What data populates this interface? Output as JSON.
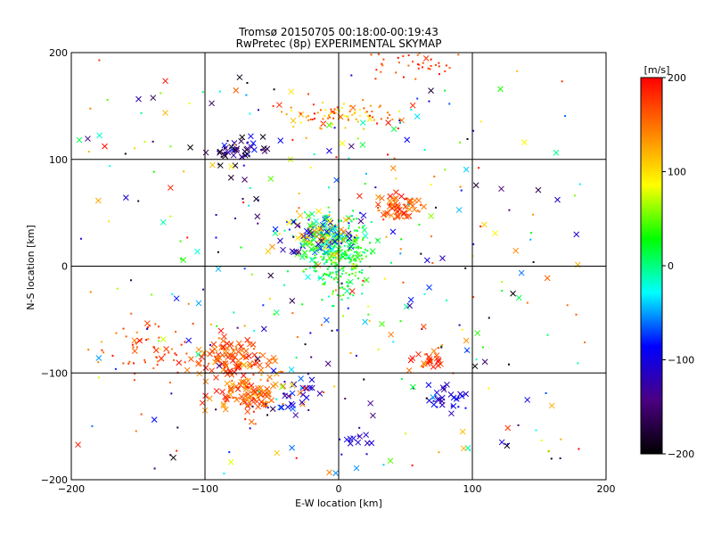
{
  "chart_data": {
    "type": "scatter",
    "title": "Tromsø 20150705 00:18:00-00:19:43",
    "subtitle": "RwPretec (8p) EXPERIMENTAL SKYMAP",
    "xlabel": "E-W location [km]",
    "ylabel": "N-S location [km]",
    "xlim": [
      -200,
      200
    ],
    "ylim": [
      -200,
      200
    ],
    "xticks": [
      -200,
      -100,
      0,
      100,
      200
    ],
    "yticks": [
      -200,
      -100,
      0,
      100,
      200
    ],
    "grid": true,
    "colorbar": {
      "label": "[m/s]",
      "min": -200,
      "max": 200,
      "ticks": [
        200,
        100,
        0,
        -100,
        -200
      ],
      "colorscale": [
        "#000000",
        "#4b0082",
        "#0000ff",
        "#00ffff",
        "#00ff00",
        "#ffff00",
        "#ff8000",
        "#ff0000"
      ]
    },
    "clusters": [
      {
        "name": "center-green",
        "cx": 0,
        "cy": 10,
        "sx": 12,
        "sy": 18,
        "n": 320,
        "v": [
          -20,
          60
        ],
        "marker": "dot"
      },
      {
        "name": "center-mixed",
        "cx": -15,
        "cy": 30,
        "sx": 14,
        "sy": 10,
        "n": 160,
        "v": [
          -150,
          150
        ],
        "marker": "x"
      },
      {
        "name": "ne-red",
        "cx": 45,
        "cy": 55,
        "sx": 8,
        "sy": 6,
        "n": 70,
        "v": [
          130,
          200
        ],
        "marker": "x"
      },
      {
        "name": "top-arc",
        "cx": 0,
        "cy": 142,
        "sx": 22,
        "sy": 6,
        "n": 90,
        "v": [
          80,
          200
        ],
        "marker": "dot"
      },
      {
        "name": "nw-dark",
        "cx": -75,
        "cy": 108,
        "sx": 12,
        "sy": 8,
        "n": 50,
        "v": [
          -200,
          -80
        ],
        "marker": "x"
      },
      {
        "name": "sw-orange-1",
        "cx": -80,
        "cy": -88,
        "sx": 14,
        "sy": 10,
        "n": 110,
        "v": [
          130,
          200
        ],
        "marker": "x"
      },
      {
        "name": "sw-orange-2",
        "cx": -65,
        "cy": -122,
        "sx": 14,
        "sy": 10,
        "n": 110,
        "v": [
          110,
          200
        ],
        "marker": "x"
      },
      {
        "name": "south-blue",
        "cx": -35,
        "cy": -120,
        "sx": 8,
        "sy": 10,
        "n": 30,
        "v": [
          -140,
          -60
        ],
        "marker": "x"
      },
      {
        "name": "se-blue",
        "cx": 80,
        "cy": -122,
        "sx": 8,
        "sy": 6,
        "n": 30,
        "v": [
          -130,
          -80
        ],
        "marker": "x"
      },
      {
        "name": "se-red",
        "cx": 68,
        "cy": -90,
        "sx": 6,
        "sy": 5,
        "n": 25,
        "v": [
          140,
          200
        ],
        "marker": "x"
      },
      {
        "name": "left-red",
        "cx": -145,
        "cy": -78,
        "sx": 18,
        "sy": 12,
        "n": 60,
        "v": [
          140,
          200
        ],
        "marker": "dot"
      },
      {
        "name": "bottom-blue",
        "cx": 12,
        "cy": -165,
        "sx": 6,
        "sy": 8,
        "n": 15,
        "v": [
          -130,
          -90
        ],
        "marker": "x"
      },
      {
        "name": "top-right-red",
        "cx": 60,
        "cy": 190,
        "sx": 20,
        "sy": 6,
        "n": 40,
        "v": [
          150,
          200
        ],
        "marker": "dot"
      },
      {
        "name": "scatter-all",
        "cx": 0,
        "cy": 0,
        "sx": 85,
        "sy": 90,
        "n": 380,
        "v": [
          -200,
          200
        ],
        "marker": "mixed"
      }
    ]
  }
}
